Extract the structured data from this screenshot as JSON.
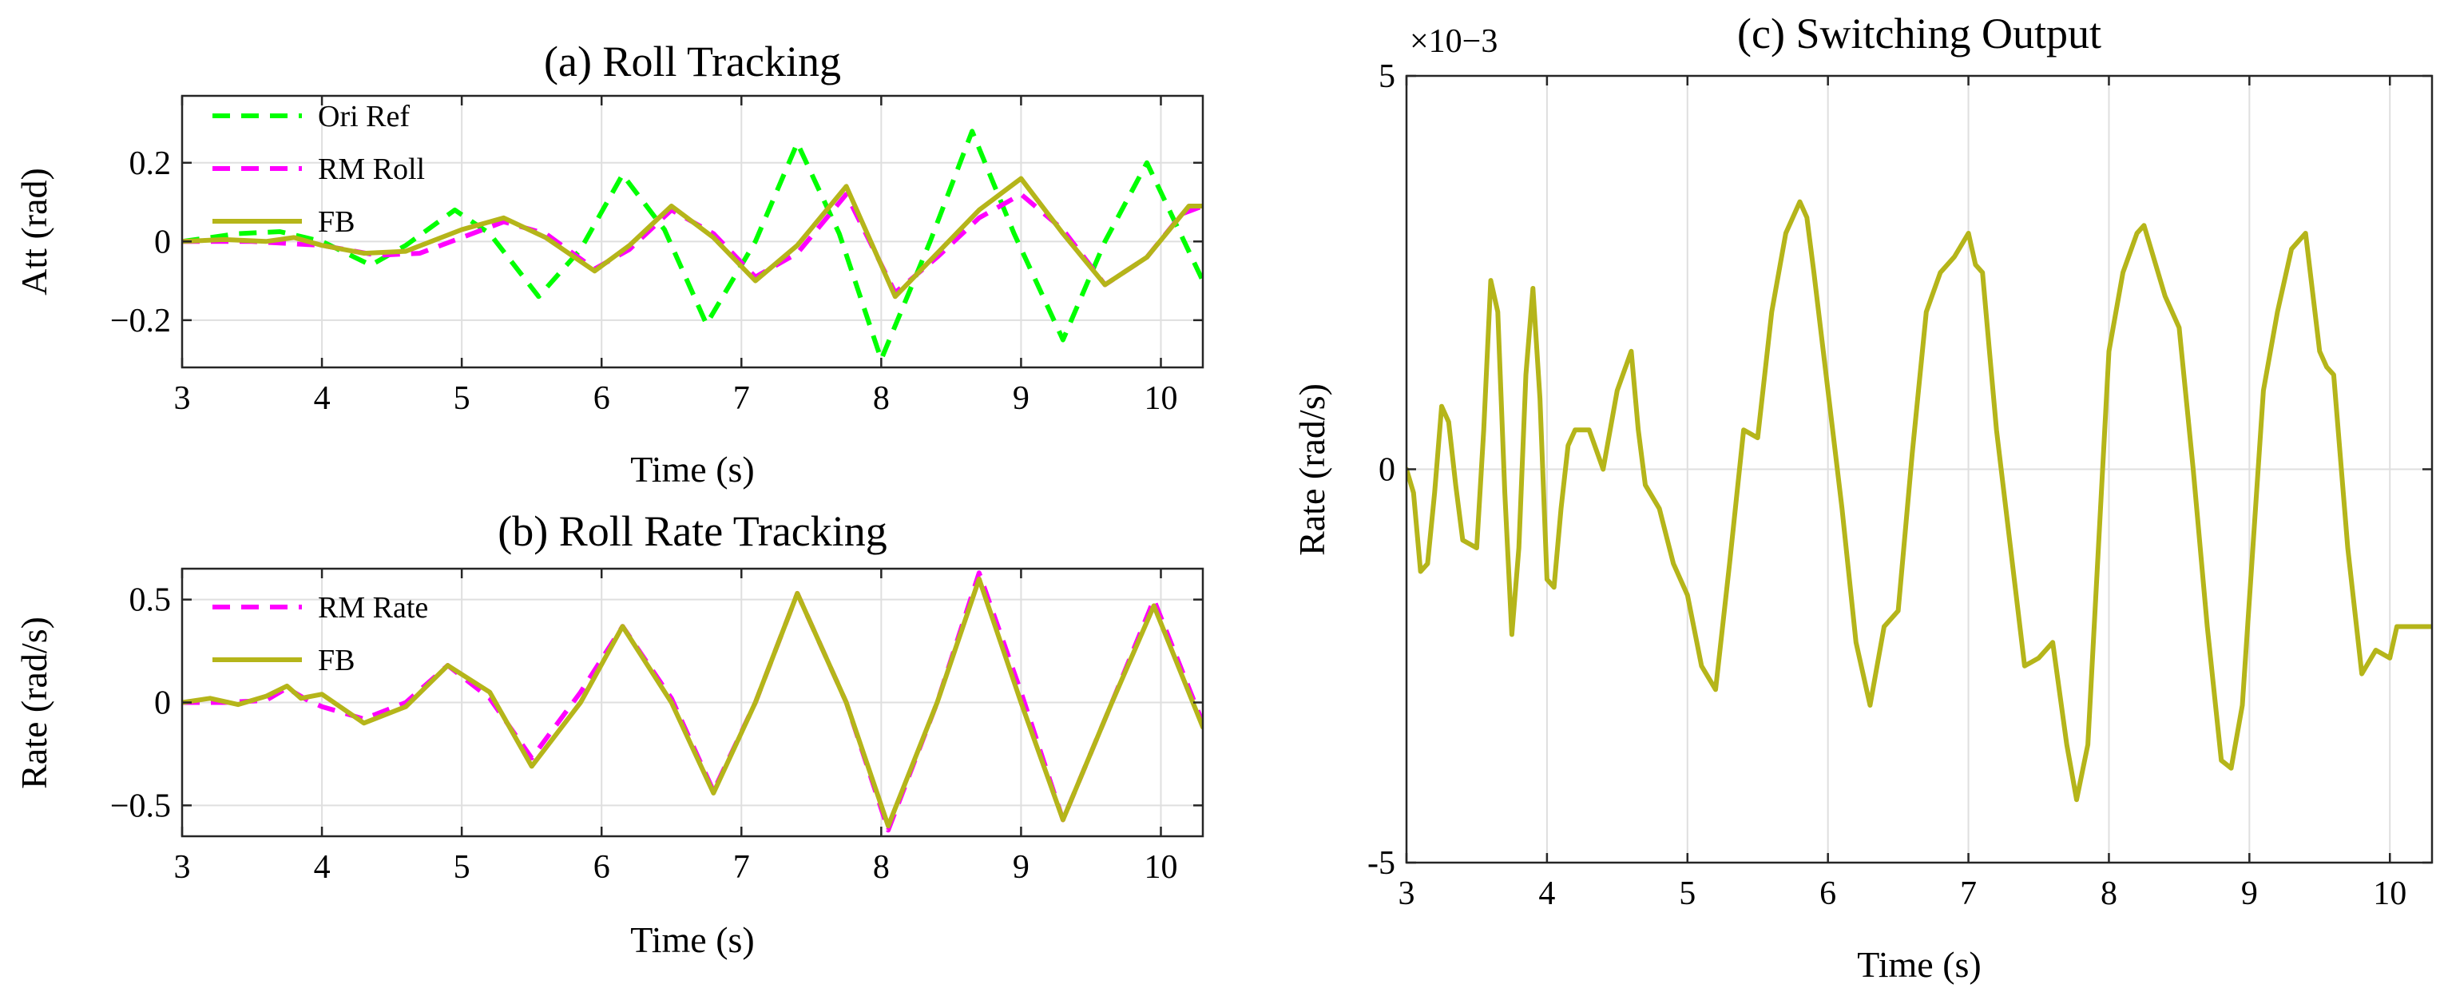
{
  "colors": {
    "ori_ref": "#00ff00",
    "rm": "#ff00ff",
    "fb": "#b5b51a"
  },
  "chart_data": [
    {
      "id": "a",
      "type": "line",
      "title": "(a) Roll Tracking",
      "xlabel": "Time (s)",
      "ylabel": "Att (rad)",
      "xlim": [
        3,
        10.3
      ],
      "ylim": [
        -0.32,
        0.37
      ],
      "xticks": [
        3,
        4,
        5,
        6,
        7,
        8,
        9,
        10
      ],
      "xtick_labels": [
        "3",
        "4",
        "5",
        "6",
        "7",
        "8",
        "9",
        "10"
      ],
      "yticks": [
        -0.2,
        0,
        0.2
      ],
      "ytick_labels": [
        "−0.2",
        "0",
        "0.2"
      ],
      "legend": "top-left",
      "series": [
        {
          "name": "Ori Ref",
          "style": "dashed",
          "color": "#00ff00",
          "x": [
            3.0,
            3.4,
            3.7,
            4.0,
            4.35,
            4.6,
            4.95,
            5.2,
            5.55,
            5.85,
            6.15,
            6.45,
            6.75,
            7.1,
            7.4,
            7.7,
            8.0,
            8.35,
            8.65,
            8.95,
            9.3,
            9.6,
            9.9,
            10.3
          ],
          "y": [
            0.0,
            0.02,
            0.025,
            0.0,
            -0.06,
            -0.01,
            0.08,
            0.02,
            -0.14,
            -0.02,
            0.17,
            0.03,
            -0.21,
            0.0,
            0.25,
            0.02,
            -0.3,
            0.0,
            0.28,
            0.02,
            -0.25,
            0.0,
            0.2,
            -0.1
          ]
        },
        {
          "name": "RM Roll",
          "style": "dashed",
          "color": "#ff00ff",
          "x": [
            3.0,
            3.5,
            4.0,
            4.4,
            4.7,
            5.0,
            5.3,
            5.6,
            5.95,
            6.2,
            6.5,
            6.8,
            7.1,
            7.4,
            7.75,
            8.1,
            8.4,
            8.7,
            9.0,
            9.3,
            9.6,
            9.9,
            10.15,
            10.3
          ],
          "y": [
            0.0,
            0.0,
            -0.01,
            -0.035,
            -0.03,
            0.01,
            0.05,
            0.02,
            -0.07,
            -0.02,
            0.08,
            0.02,
            -0.09,
            -0.03,
            0.12,
            -0.13,
            -0.04,
            0.06,
            0.12,
            0.03,
            -0.11,
            -0.04,
            0.07,
            0.09
          ]
        },
        {
          "name": "FB",
          "style": "solid",
          "color": "#b5b51a",
          "x": [
            3.0,
            3.3,
            3.6,
            3.8,
            4.0,
            4.3,
            4.6,
            5.0,
            5.3,
            5.6,
            5.95,
            6.2,
            6.5,
            6.8,
            7.1,
            7.4,
            7.75,
            8.1,
            8.4,
            8.7,
            9.0,
            9.3,
            9.6,
            9.9,
            10.2,
            10.3
          ],
          "y": [
            0.0,
            0.005,
            0.0,
            0.01,
            -0.01,
            -0.03,
            -0.025,
            0.03,
            0.06,
            0.01,
            -0.075,
            -0.01,
            0.09,
            0.01,
            -0.1,
            -0.01,
            0.14,
            -0.14,
            -0.03,
            0.08,
            0.16,
            0.02,
            -0.11,
            -0.04,
            0.09,
            0.09
          ]
        }
      ]
    },
    {
      "id": "b",
      "type": "line",
      "title": "(b) Roll Rate Tracking",
      "xlabel": "Time (s)",
      "ylabel": "Rate (rad/s)",
      "xlim": [
        3,
        10.3
      ],
      "ylim": [
        -0.65,
        0.65
      ],
      "xticks": [
        3,
        4,
        5,
        6,
        7,
        8,
        9,
        10
      ],
      "xtick_labels": [
        "3",
        "4",
        "5",
        "6",
        "7",
        "8",
        "9",
        "10"
      ],
      "yticks": [
        -0.5,
        0,
        0.5
      ],
      "ytick_labels": [
        "−0.5",
        "0",
        "0.5"
      ],
      "legend": "top-left",
      "series": [
        {
          "name": "RM Rate",
          "style": "dashed",
          "color": "#ff00ff",
          "x": [
            3.0,
            3.3,
            3.6,
            3.75,
            3.9,
            4.0,
            4.3,
            4.6,
            4.9,
            5.2,
            5.5,
            5.85,
            6.15,
            6.5,
            6.8,
            7.1,
            7.4,
            7.75,
            8.05,
            8.4,
            8.7,
            9.0,
            9.3,
            9.65,
            9.95,
            10.3
          ],
          "y": [
            0.0,
            0.0,
            0.01,
            0.07,
            0.01,
            -0.02,
            -0.08,
            0.0,
            0.18,
            0.02,
            -0.27,
            0.05,
            0.37,
            0.02,
            -0.43,
            0.0,
            0.53,
            0.0,
            -0.62,
            0.0,
            0.63,
            0.05,
            -0.57,
            0.0,
            0.5,
            -0.1
          ]
        },
        {
          "name": "FB",
          "style": "solid",
          "color": "#b5b51a",
          "x": [
            3.0,
            3.2,
            3.4,
            3.6,
            3.75,
            3.85,
            4.0,
            4.15,
            4.3,
            4.6,
            4.9,
            5.2,
            5.5,
            5.85,
            6.15,
            6.5,
            6.8,
            7.1,
            7.4,
            7.75,
            8.05,
            8.4,
            8.7,
            9.0,
            9.3,
            9.65,
            9.95,
            10.3
          ],
          "y": [
            0.0,
            0.02,
            -0.01,
            0.03,
            0.08,
            0.02,
            0.04,
            -0.03,
            -0.1,
            -0.02,
            0.18,
            0.05,
            -0.31,
            0.0,
            0.37,
            0.0,
            -0.44,
            0.0,
            0.53,
            0.0,
            -0.6,
            0.0,
            0.6,
            0.0,
            -0.57,
            0.0,
            0.47,
            -0.12
          ]
        }
      ]
    },
    {
      "id": "c",
      "type": "line",
      "title": "(c) Switching Output",
      "xlabel": "Time (s)",
      "ylabel": "Rate (rad/s)",
      "axis_multiplier": "×10−3",
      "xlim": [
        3,
        10.3
      ],
      "ylim": [
        -5,
        5
      ],
      "xticks": [
        3,
        4,
        5,
        6,
        7,
        8,
        9,
        10
      ],
      "xtick_labels": [
        "3",
        "4",
        "5",
        "6",
        "7",
        "8",
        "9",
        "10"
      ],
      "yticks": [
        -5,
        0,
        5
      ],
      "ytick_labels": [
        "-5",
        "0",
        "5"
      ],
      "series": [
        {
          "name": "Switching Output",
          "style": "solid",
          "color": "#b5b51a",
          "x": [
            3.0,
            3.05,
            3.1,
            3.15,
            3.2,
            3.25,
            3.3,
            3.35,
            3.4,
            3.5,
            3.55,
            3.6,
            3.65,
            3.7,
            3.75,
            3.8,
            3.85,
            3.9,
            3.95,
            4.0,
            4.05,
            4.1,
            4.15,
            4.2,
            4.3,
            4.4,
            4.5,
            4.6,
            4.65,
            4.7,
            4.8,
            4.9,
            5.0,
            5.1,
            5.2,
            5.3,
            5.4,
            5.5,
            5.6,
            5.7,
            5.8,
            5.85,
            5.9,
            6.0,
            6.1,
            6.2,
            6.3,
            6.4,
            6.5,
            6.6,
            6.7,
            6.8,
            6.9,
            7.0,
            7.05,
            7.1,
            7.15,
            7.2,
            7.3,
            7.4,
            7.5,
            7.6,
            7.7,
            7.77,
            7.85,
            8.0,
            8.1,
            8.2,
            8.25,
            8.3,
            8.4,
            8.5,
            8.6,
            8.7,
            8.8,
            8.87,
            8.95,
            9.1,
            9.2,
            9.3,
            9.4,
            9.5,
            9.55,
            9.6,
            9.7,
            9.8,
            9.9,
            10.0,
            10.05,
            10.1,
            10.2,
            10.3
          ],
          "y": [
            0.0,
            -0.3,
            -1.3,
            -1.2,
            -0.3,
            0.8,
            0.6,
            -0.2,
            -0.9,
            -1.0,
            0.5,
            2.4,
            2.0,
            -0.3,
            -2.1,
            -1.0,
            1.2,
            2.3,
            0.9,
            -1.4,
            -1.5,
            -0.5,
            0.3,
            0.5,
            0.5,
            0.0,
            1.0,
            1.5,
            0.5,
            -0.2,
            -0.5,
            -1.2,
            -1.6,
            -2.5,
            -2.8,
            -1.2,
            0.5,
            0.4,
            2.0,
            3.0,
            3.4,
            3.2,
            2.5,
            1.0,
            -0.5,
            -2.2,
            -3.0,
            -2.0,
            -1.8,
            0.2,
            2.0,
            2.5,
            2.7,
            3.0,
            2.6,
            2.5,
            1.5,
            0.5,
            -1.0,
            -2.5,
            -2.4,
            -2.2,
            -3.5,
            -4.2,
            -3.5,
            1.5,
            2.5,
            3.0,
            3.1,
            2.8,
            2.2,
            1.8,
            0.0,
            -2.0,
            -3.7,
            -3.8,
            -3.0,
            1.0,
            2.0,
            2.8,
            3.0,
            1.5,
            1.3,
            1.2,
            -1.0,
            -2.6,
            -2.3,
            -2.4,
            -2.0,
            -2.0,
            -2.0,
            -2.0
          ]
        }
      ]
    }
  ]
}
